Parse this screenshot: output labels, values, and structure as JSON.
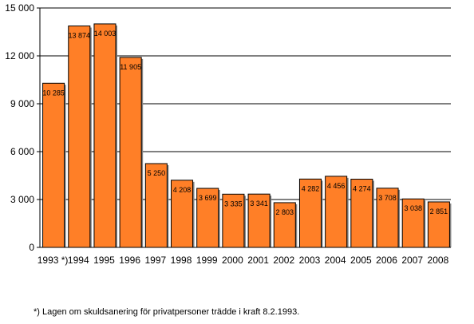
{
  "chart_data": {
    "type": "bar",
    "categories": [
      "1993 *)",
      "1994",
      "1995",
      "1996",
      "1997",
      "1998",
      "1999",
      "2000",
      "2001",
      "2002",
      "2003",
      "2004",
      "2005",
      "2006",
      "2007",
      "2008"
    ],
    "values": [
      10285,
      13874,
      14003,
      11905,
      5250,
      4208,
      3699,
      3335,
      3341,
      2803,
      4282,
      4456,
      4274,
      3708,
      3038,
      2851
    ],
    "value_labels": [
      "10 285",
      "13 874",
      "14 003",
      "11 905",
      "5 250",
      "4 208",
      "3 699",
      "3 335",
      "3 341",
      "2 803",
      "4 282",
      "4 456",
      "4 274",
      "3 708",
      "3 038",
      "2 851"
    ],
    "ylim": [
      0,
      15000
    ],
    "yticks": [
      0,
      3000,
      6000,
      9000,
      12000,
      15000
    ],
    "ytick_labels": [
      "0",
      "3 000",
      "6 000",
      "9 000",
      "12 000",
      "15 000"
    ],
    "grid": true,
    "bar_color": "#ff7f27",
    "bar_edge_color": "#000000",
    "shadow_color": "#808080"
  },
  "footnote": "*) Lagen om skuldsanering för privatpersoner trädde i kraft 8.2.1993."
}
